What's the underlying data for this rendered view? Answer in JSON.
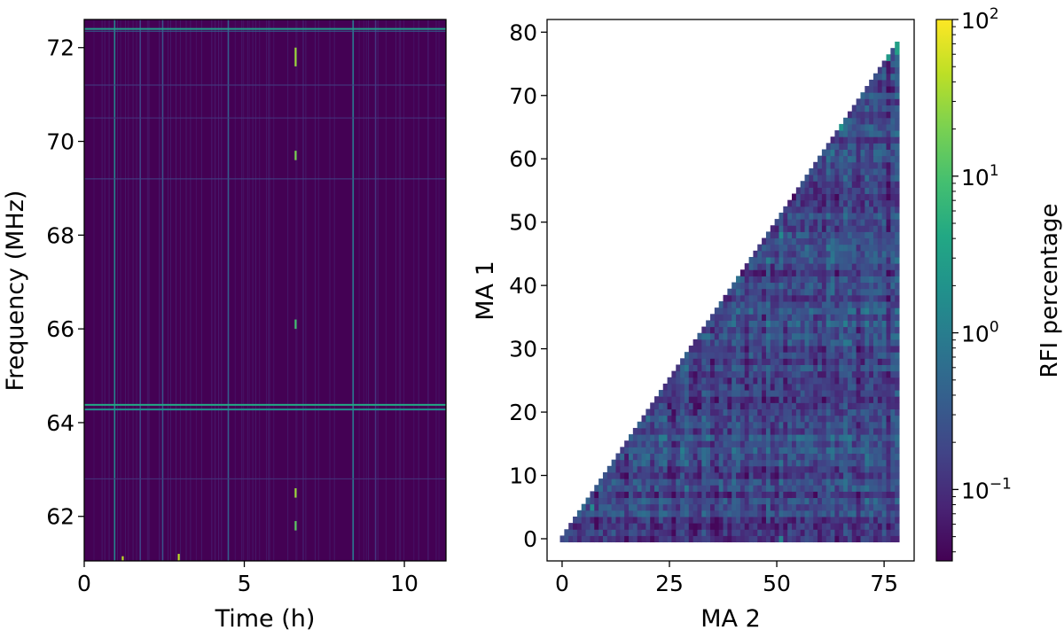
{
  "chart_data": [
    {
      "type": "heatmap",
      "title": "",
      "xlabel": "Time (h)",
      "ylabel": "Frequency (MHz)",
      "xlim": [
        0,
        11.3
      ],
      "ylim": [
        61.05,
        72.6
      ],
      "xticks": [
        0,
        5,
        10
      ],
      "xtick_labels": [
        "0",
        "5",
        "10"
      ],
      "yticks": [
        62,
        64,
        66,
        68,
        70,
        72
      ],
      "ytick_labels": [
        "62",
        "64",
        "66",
        "68",
        "70",
        "72"
      ],
      "colormap": "viridis",
      "background_color": "#440154",
      "features": {
        "horizontal_lines": [
          {
            "frequency": 72.4,
            "intensity": 0.55
          },
          {
            "frequency": 72.35,
            "intensity": 0.3
          },
          {
            "frequency": 71.2,
            "intensity": 0.18
          },
          {
            "frequency": 70.5,
            "intensity": 0.15
          },
          {
            "frequency": 69.2,
            "intensity": 0.2
          },
          {
            "frequency": 64.38,
            "intensity": 0.6
          },
          {
            "frequency": 64.28,
            "intensity": 0.5
          },
          {
            "frequency": 62.8,
            "intensity": 0.15
          }
        ],
        "vertical_lines": [
          {
            "time": 0.95,
            "intensity": 0.45
          },
          {
            "time": 2.45,
            "intensity": 0.25
          },
          {
            "time": 4.5,
            "intensity": 0.3
          },
          {
            "time": 8.4,
            "intensity": 0.4
          },
          {
            "time": 1.75,
            "intensity": 0.2
          },
          {
            "time": 9.1,
            "intensity": 0.15
          }
        ],
        "spikes": [
          {
            "time": 6.6,
            "frequency_start": 71.6,
            "frequency_end": 72.0,
            "intensity": 0.85
          },
          {
            "time": 6.6,
            "frequency_start": 69.6,
            "frequency_end": 69.8,
            "intensity": 0.8
          },
          {
            "time": 6.6,
            "frequency_start": 66.0,
            "frequency_end": 66.2,
            "intensity": 0.7
          },
          {
            "time": 6.6,
            "frequency_start": 62.4,
            "frequency_end": 62.6,
            "intensity": 0.85
          },
          {
            "time": 6.6,
            "frequency_start": 61.7,
            "frequency_end": 61.9,
            "intensity": 0.75
          },
          {
            "time": 2.95,
            "frequency_start": 61.05,
            "frequency_end": 61.2,
            "intensity": 0.9
          },
          {
            "time": 1.2,
            "frequency_start": 61.05,
            "frequency_end": 61.15,
            "intensity": 0.9
          }
        ]
      }
    },
    {
      "type": "heatmap",
      "title": "",
      "xlabel": "MA 2",
      "ylabel": "MA 1",
      "xlim": [
        -3.5,
        82
      ],
      "ylim": [
        -3.5,
        82
      ],
      "xticks": [
        0,
        25,
        50,
        75
      ],
      "xtick_labels": [
        "0",
        "25",
        "50",
        "75"
      ],
      "yticks": [
        0,
        10,
        20,
        30,
        40,
        50,
        60,
        70,
        80
      ],
      "ytick_labels": [
        "0",
        "10",
        "20",
        "30",
        "40",
        "50",
        "60",
        "70",
        "80"
      ],
      "n_antennas": 79,
      "mask": "lower-triangle (MA 1 <= MA 2)",
      "colorbar": {
        "label": "RFI percentage",
        "scale": "log",
        "range": [
          0.035,
          100
        ],
        "colormap": "viridis",
        "ticks": [
          {
            "base": "10",
            "exp": "−1",
            "value": 0.1
          },
          {
            "base": "10",
            "exp": "0",
            "value": 1
          },
          {
            "base": "10",
            "exp": "1",
            "value": 10
          },
          {
            "base": "10",
            "exp": "2",
            "value": 100
          }
        ]
      },
      "typical_value_range": [
        0.06,
        1.2
      ],
      "hot_cells": [
        {
          "ma1": 78,
          "ma2": 78,
          "value": 3.0
        },
        {
          "ma1": 77,
          "ma2": 78,
          "value": 3.0
        },
        {
          "ma1": 76,
          "ma2": 76,
          "value": 2.5
        },
        {
          "ma1": 65,
          "ma2": 65,
          "value": 2.0
        },
        {
          "ma1": 52,
          "ma2": 51,
          "value": 2.0
        },
        {
          "ma1": 48,
          "ma2": 51,
          "value": 1.5
        },
        {
          "ma1": 5,
          "ma2": 7,
          "value": 1.5
        },
        {
          "ma1": 0,
          "ma2": 51,
          "value": 1.2
        }
      ]
    }
  ]
}
